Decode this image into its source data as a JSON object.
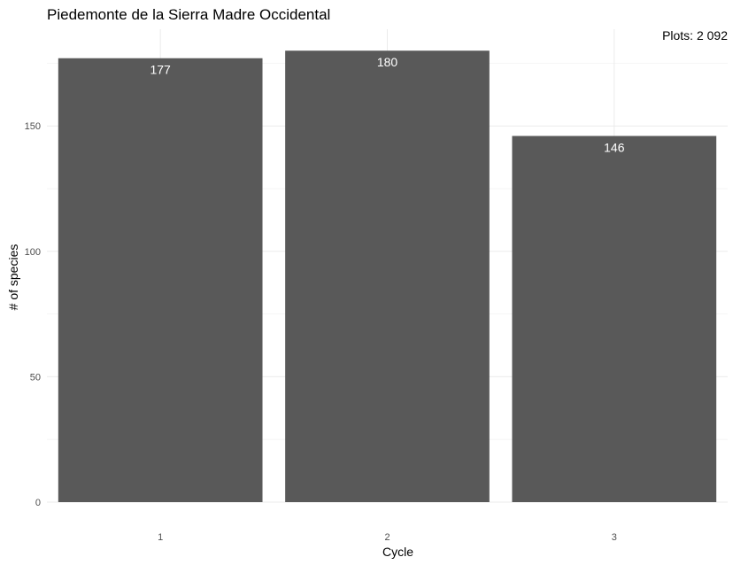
{
  "chart_data": {
    "type": "bar",
    "title": "Piedemonte de la Sierra Madre Occidental",
    "annotation": "Plots: 2 092",
    "categories": [
      "1",
      "2",
      "3"
    ],
    "values": [
      177,
      180,
      146
    ],
    "data_labels": [
      "177",
      "180",
      "146"
    ],
    "xlabel": "Cycle",
    "ylabel": "# of species",
    "ylim": [
      0,
      180
    ],
    "yticks": [
      0,
      50,
      100,
      150
    ],
    "ytick_labels": [
      "0",
      "50",
      "100",
      "150"
    ],
    "grid": true,
    "bar_color": "#595959",
    "label_color": "#ffffff"
  }
}
